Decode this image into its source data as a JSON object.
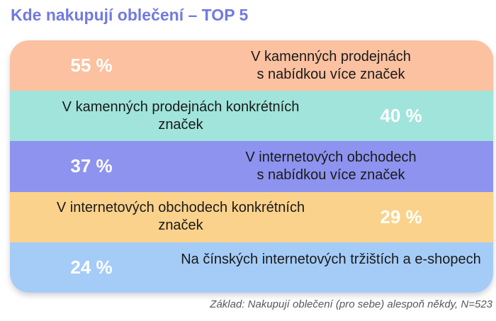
{
  "title": "Kde nakupují oblečení – TOP 5",
  "footer": "Základ: Nakupují oblečení (pro sebe) alespoň někdy, N=523",
  "colors": {
    "title_text": "#7179E1",
    "percent_text": "#FFFFFF",
    "label_text": "#1A1A1A",
    "footer_text": "#595959",
    "page_background": "#FFFFFF",
    "bar_1": "#FBC1A0",
    "bar_2": "#A0E4DB",
    "bar_3": "#8D93EE",
    "bar_4": "#FBD28B",
    "bar_5": "#A5CCF7"
  },
  "chart_data": {
    "type": "bar",
    "title": "Kde nakupují oblečení – TOP 5",
    "unit": "%",
    "orientation": "horizontal-stripe-list",
    "categories": [
      "V kamenných prodejnách s nabídkou více značek",
      "V kamenných prodejnách konkrétních značek",
      "V internetových obchodech s nabídkou více značek",
      "V internetových obchodech konkrétních značek",
      "Na čínských internetových tržištích a e-shopech"
    ],
    "values": [
      55,
      40,
      37,
      29,
      24
    ],
    "value_labels": [
      "55 %",
      "40 %",
      "37 %",
      "29 %",
      "24 %"
    ],
    "bar_colors": [
      "#FBC1A0",
      "#A0E4DB",
      "#8D93EE",
      "#FBD28B",
      "#A5CCF7"
    ],
    "legend": "none",
    "grid": "off",
    "note": "Základ: Nakupují oblečení (pro sebe) alespoň někdy, N=523"
  },
  "bars": [
    {
      "value_label": "55 %",
      "line1": "V kamenných prodejnách",
      "line2": "s nabídkou více značek",
      "color": "#FBC1A0",
      "percent_side": "left"
    },
    {
      "value_label": "40 %",
      "line1": "V kamenných prodejnách konkrétních",
      "line2": "značek",
      "color": "#A0E4DB",
      "percent_side": "right"
    },
    {
      "value_label": "37 %",
      "line1": "V internetových obchodech",
      "line2": "s nabídkou více značek",
      "color": "#8D93EE",
      "percent_side": "left"
    },
    {
      "value_label": "29 %",
      "line1": "V internetových obchodech konkrétních",
      "line2": "značek",
      "color": "#FBD28B",
      "percent_side": "right"
    },
    {
      "value_label": "24 %",
      "line1": "Na čínských internetových tržištích a e-shopech",
      "line2": "",
      "color": "#A5CCF7",
      "percent_side": "left"
    }
  ]
}
